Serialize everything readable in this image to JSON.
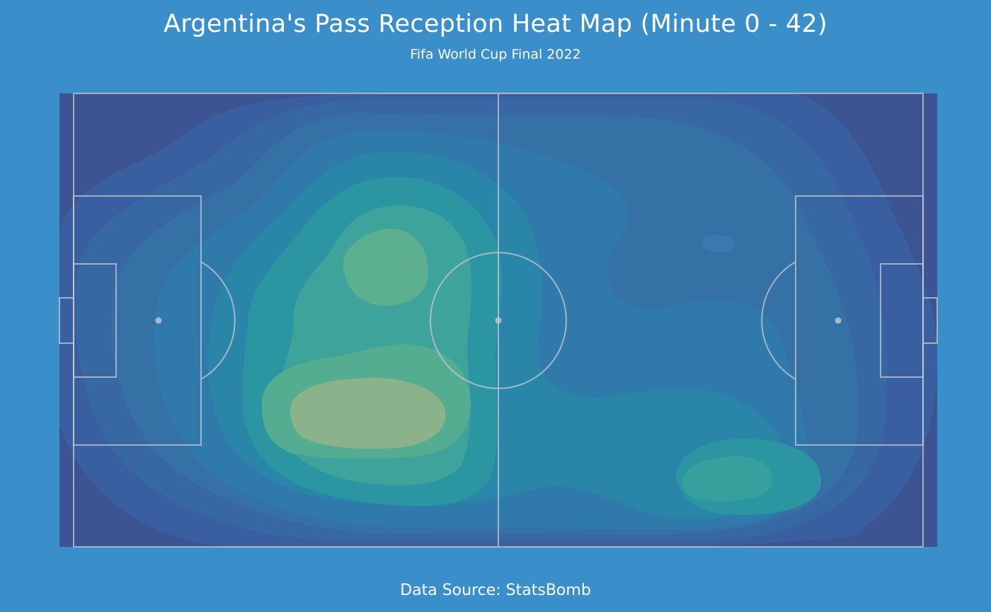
{
  "header": {
    "title": "Argentina's Pass Reception Heat Map (Minute 0 - 42)",
    "subtitle": "Fifa World Cup Final 2022"
  },
  "footer": {
    "source": "Data Source: StatsBomb"
  },
  "colors": {
    "background": "#3a8fcb",
    "pitch_lines": "#c8c8d2",
    "density_low": "#3b528b",
    "density_mid": "#21918c",
    "density_high": "#5ec962",
    "density_peak": "#a7c98e"
  },
  "chart_data": {
    "type": "heatmap",
    "subtype": "kde-density-pitch",
    "title": "Argentina's Pass Reception Heat Map (Minute 0 - 42)",
    "subtitle": "Fifa World Cup Final 2022",
    "pitch": {
      "length": 120,
      "width": 80,
      "provider": "statsbomb"
    },
    "xlim": [
      -2,
      122
    ],
    "ylim": [
      0,
      80
    ],
    "density_levels": 9,
    "hotspots": [
      {
        "x": 35,
        "y": 56,
        "intensity": 1.0
      },
      {
        "x": 45,
        "y": 57,
        "intensity": 0.95
      },
      {
        "x": 45,
        "y": 31,
        "intensity": 0.85
      },
      {
        "x": 55,
        "y": 45,
        "intensity": 0.6
      },
      {
        "x": 94,
        "y": 67,
        "intensity": 0.45
      },
      {
        "x": 92,
        "y": 27,
        "intensity": 0.3
      },
      {
        "x": 12,
        "y": 40,
        "intensity": 0.35
      }
    ]
  }
}
